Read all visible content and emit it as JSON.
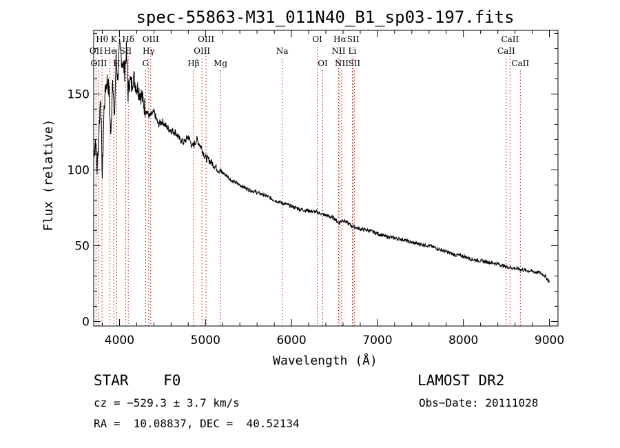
{
  "chart_data": {
    "type": "line",
    "title": "spec-55863-M31_011N40_B1_sp03-197.fits",
    "xlabel": "Wavelength (Å)",
    "ylabel": "Flux (relative)",
    "xlim": [
      3700,
      9100
    ],
    "ylim": [
      -3,
      192
    ],
    "x_ticks": [
      4000,
      5000,
      6000,
      7000,
      8000,
      9000
    ],
    "y_ticks": [
      0,
      50,
      100,
      150
    ],
    "grid": false,
    "series": [
      {
        "x": [
          3700,
          3720,
          3740,
          3760,
          3780,
          3800,
          3820,
          3840,
          3860,
          3880,
          3900,
          3920,
          3940,
          3960,
          3980,
          4000,
          4020,
          4040,
          4060,
          4080,
          4100,
          4120,
          4140,
          4160,
          4180,
          4200,
          4250,
          4300,
          4350,
          4400,
          4450,
          4500,
          4550,
          4600,
          4650,
          4700,
          4750,
          4800,
          4850,
          4900,
          4950,
          5000,
          5050,
          5100,
          5150,
          5200,
          5250,
          5300,
          5400,
          5500,
          5600,
          5700,
          5800,
          5900,
          6000,
          6100,
          6200,
          6300,
          6400,
          6500,
          6550,
          6600,
          6700,
          6800,
          6900,
          7000,
          7100,
          7200,
          7300,
          7400,
          7500,
          7600,
          7700,
          7800,
          7900,
          8000,
          8100,
          8200,
          8300,
          8400,
          8500,
          8600,
          8700,
          8800,
          8900,
          8950,
          9000
        ],
        "y": [
          110,
          120,
          100,
          125,
          150,
          95,
          140,
          155,
          160,
          150,
          120,
          165,
          130,
          175,
          160,
          180,
          175,
          170,
          165,
          178,
          150,
          160,
          155,
          162,
          158,
          155,
          150,
          140,
          135,
          138,
          130,
          132,
          128,
          126,
          125,
          120,
          118,
          122,
          115,
          120,
          115,
          108,
          106,
          103,
          100,
          98,
          96,
          93,
          90,
          87,
          85,
          83,
          80,
          78,
          76,
          74,
          73,
          72,
          70,
          68,
          65,
          67,
          63,
          61,
          60,
          58,
          56,
          55,
          54,
          52,
          51,
          50,
          48,
          46,
          44,
          43,
          41,
          40,
          39,
          38,
          36,
          35,
          34,
          33,
          32,
          30,
          26
        ]
      }
    ],
    "spectral_lines": [
      {
        "label": "Hθ",
        "x": 3797,
        "row": 0
      },
      {
        "label": "K",
        "x": 3934,
        "row": 0
      },
      {
        "label": "Hδ",
        "x": 4102,
        "row": 0
      },
      {
        "label": "OIII",
        "x": 4363,
        "row": 0
      },
      {
        "label": "OIII",
        "x": 5007,
        "row": 0
      },
      {
        "label": "OI",
        "x": 6300,
        "row": 0
      },
      {
        "label": "Hα",
        "x": 6563,
        "row": 0
      },
      {
        "label": "SII",
        "x": 6717,
        "row": 0
      },
      {
        "label": "CaII",
        "x": 8542,
        "row": 0
      },
      {
        "label": "OII",
        "x": 3727,
        "row": 1
      },
      {
        "label": "He",
        "x": 3889,
        "row": 1
      },
      {
        "label": "SII",
        "x": 4072,
        "row": 1
      },
      {
        "label": "Hγ",
        "x": 4340,
        "row": 1
      },
      {
        "label": "OIII",
        "x": 4959,
        "row": 1
      },
      {
        "label": "Na",
        "x": 5893,
        "row": 1
      },
      {
        "label": "NII",
        "x": 6548,
        "row": 1
      },
      {
        "label": "Li",
        "x": 6708,
        "row": 1
      },
      {
        "label": "CaII",
        "x": 8498,
        "row": 1
      },
      {
        "label": "OIII",
        "x": 3760,
        "row": 2
      },
      {
        "label": "H",
        "x": 3968,
        "row": 2
      },
      {
        "label": "G",
        "x": 4304,
        "row": 2
      },
      {
        "label": "Hβ",
        "x": 4861,
        "row": 2
      },
      {
        "label": "Mg",
        "x": 5175,
        "row": 2
      },
      {
        "label": "OI",
        "x": 6364,
        "row": 2
      },
      {
        "label": "NII",
        "x": 6584,
        "row": 2
      },
      {
        "label": "SII",
        "x": 6731,
        "row": 2
      },
      {
        "label": "CaII",
        "x": 8662,
        "row": 2
      }
    ]
  },
  "info": {
    "class": "STAR    F0",
    "survey": "LAMOST DR2",
    "cz": "cz = −529.3 ± 3.7 km/s",
    "obs_date": "Obs−Date: 20111028",
    "coords": "RA =  10.08837, DEC =  40.52134"
  },
  "colors": {
    "line": "#000000",
    "marker": "#cc0000",
    "background": "#ffffff"
  }
}
